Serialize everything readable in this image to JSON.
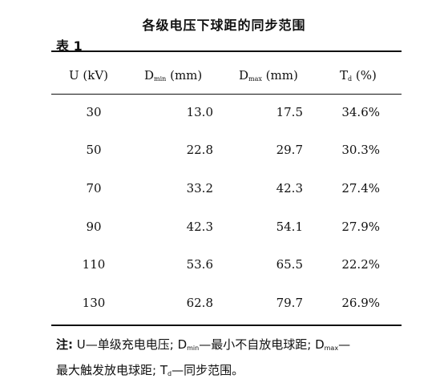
{
  "title": "各级电压下球距的同步范围",
  "table_label": "表 1",
  "header": {
    "u": "U (kV)",
    "dmin_main": "D",
    "dmin_sub": "min",
    "dmin_unit": " (mm)",
    "dmax_main": "D",
    "dmax_sub": "max",
    "dmax_unit": " (mm)",
    "td_main": "T",
    "td_sub": "d",
    "td_unit": " (%)"
  },
  "rows": [
    {
      "u": "30",
      "dmin": "13.0",
      "dmax": "17.5",
      "td": "34.6%"
    },
    {
      "u": "50",
      "dmin": "22.8",
      "dmax": "29.7",
      "td": "30.3%"
    },
    {
      "u": "70",
      "dmin": "33.2",
      "dmax": "42.3",
      "td": "27.4%"
    },
    {
      "u": "90",
      "dmin": "42.3",
      "dmax": "54.1",
      "td": "27.9%"
    },
    {
      "u": "110",
      "dmin": "53.6",
      "dmax": "65.5",
      "td": "22.2%"
    },
    {
      "u": "130",
      "dmin": "62.8",
      "dmax": "79.7",
      "td": "26.9%"
    }
  ],
  "note": {
    "prefix": "注:",
    "u_def": " U—单级充电电压; ",
    "dmin_main": "D",
    "dmin_sub": "min",
    "dmin_def": "—最小不自放电球距; ",
    "dmax_main": "D",
    "dmax_sub": "max",
    "dmax_def": "—",
    "line2_start": "最大触发放电球距; ",
    "td_main": "T",
    "td_sub": "d",
    "td_def": "—同步范围。"
  }
}
